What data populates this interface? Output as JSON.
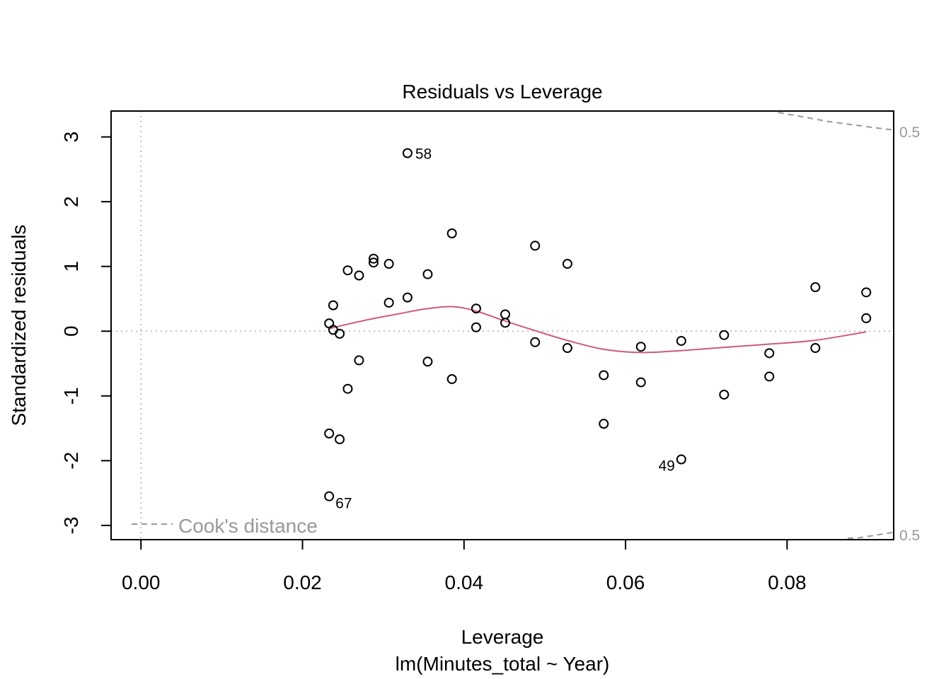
{
  "chart_data": {
    "type": "scatter",
    "title": "Residuals vs Leverage",
    "xlabel": "Leverage",
    "sublabel": "lm(Minutes_total ~ Year)",
    "ylabel": "Standardized residuals",
    "xlim": [
      -0.0037,
      0.0932
    ],
    "ylim": [
      -3.22,
      3.4
    ],
    "x_ticks": [
      {
        "value": 0.0,
        "label": "0.00"
      },
      {
        "value": 0.02,
        "label": "0.02"
      },
      {
        "value": 0.04,
        "label": "0.04"
      },
      {
        "value": 0.06,
        "label": "0.06"
      },
      {
        "value": 0.08,
        "label": "0.08"
      }
    ],
    "y_ticks": [
      {
        "value": 3,
        "label": "3"
      },
      {
        "value": 2,
        "label": "2"
      },
      {
        "value": 1,
        "label": "1"
      },
      {
        "value": 0,
        "label": "0"
      },
      {
        "value": -1,
        "label": "-1"
      },
      {
        "value": -2,
        "label": "-2"
      },
      {
        "value": -3,
        "label": "-3"
      }
    ],
    "reference_lines": {
      "x": 0,
      "y": 0,
      "style": "dotted",
      "color": "#bebebe"
    },
    "points": [
      {
        "x": 0.033,
        "y": 2.75,
        "label": "58"
      },
      {
        "x": 0.0385,
        "y": 1.51
      },
      {
        "x": 0.0488,
        "y": 1.32
      },
      {
        "x": 0.0288,
        "y": 1.12
      },
      {
        "x": 0.0288,
        "y": 1.06
      },
      {
        "x": 0.0307,
        "y": 1.04
      },
      {
        "x": 0.0528,
        "y": 1.04
      },
      {
        "x": 0.0256,
        "y": 0.94
      },
      {
        "x": 0.027,
        "y": 0.86
      },
      {
        "x": 0.0355,
        "y": 0.88
      },
      {
        "x": 0.0835,
        "y": 0.68
      },
      {
        "x": 0.0898,
        "y": 0.6
      },
      {
        "x": 0.033,
        "y": 0.52
      },
      {
        "x": 0.0307,
        "y": 0.44
      },
      {
        "x": 0.0238,
        "y": 0.4
      },
      {
        "x": 0.0415,
        "y": 0.35
      },
      {
        "x": 0.0451,
        "y": 0.26
      },
      {
        "x": 0.0898,
        "y": 0.2
      },
      {
        "x": 0.0451,
        "y": 0.13
      },
      {
        "x": 0.0233,
        "y": 0.12
      },
      {
        "x": 0.0415,
        "y": 0.06
      },
      {
        "x": 0.0238,
        "y": 0.02
      },
      {
        "x": 0.0246,
        "y": -0.04
      },
      {
        "x": 0.0722,
        "y": -0.06
      },
      {
        "x": 0.0669,
        "y": -0.15
      },
      {
        "x": 0.0488,
        "y": -0.17
      },
      {
        "x": 0.0619,
        "y": -0.24
      },
      {
        "x": 0.0528,
        "y": -0.26
      },
      {
        "x": 0.0835,
        "y": -0.26
      },
      {
        "x": 0.0778,
        "y": -0.34
      },
      {
        "x": 0.027,
        "y": -0.45
      },
      {
        "x": 0.0355,
        "y": -0.47
      },
      {
        "x": 0.0573,
        "y": -0.68
      },
      {
        "x": 0.0778,
        "y": -0.7
      },
      {
        "x": 0.0385,
        "y": -0.74
      },
      {
        "x": 0.0619,
        "y": -0.79
      },
      {
        "x": 0.0256,
        "y": -0.89
      },
      {
        "x": 0.0722,
        "y": -0.98
      },
      {
        "x": 0.0573,
        "y": -1.43
      },
      {
        "x": 0.0233,
        "y": -1.58
      },
      {
        "x": 0.0246,
        "y": -1.67
      },
      {
        "x": 0.0669,
        "y": -1.98,
        "label": "49"
      },
      {
        "x": 0.0233,
        "y": -2.55,
        "label": "67"
      }
    ],
    "smoother": {
      "color": "#cd5b77",
      "x": [
        0.0233,
        0.026,
        0.029,
        0.032,
        0.035,
        0.0385,
        0.0415,
        0.045,
        0.049,
        0.053,
        0.0573,
        0.0619,
        0.0669,
        0.0722,
        0.0778,
        0.0835,
        0.0898
      ],
      "y": [
        0.04,
        0.12,
        0.2,
        0.27,
        0.34,
        0.38,
        0.31,
        0.16,
        0.0,
        -0.15,
        -0.28,
        -0.33,
        -0.3,
        -0.25,
        -0.2,
        -0.14,
        -0.01
      ]
    },
    "cooks_distance": {
      "legend": "Cook's distance",
      "contour_label_top": "0.5",
      "contour_label_bottom": "0.5",
      "color": "#999999",
      "upper": {
        "x": [
          0.0789,
          0.082,
          0.085,
          0.088,
          0.091,
          0.0932
        ],
        "y": [
          3.4,
          3.31,
          3.24,
          3.19,
          3.14,
          3.11
        ]
      },
      "lower": {
        "x": [
          0.0875,
          0.089,
          0.091,
          0.0932
        ],
        "y": [
          -3.22,
          -3.19,
          -3.15,
          -3.11
        ]
      }
    }
  }
}
